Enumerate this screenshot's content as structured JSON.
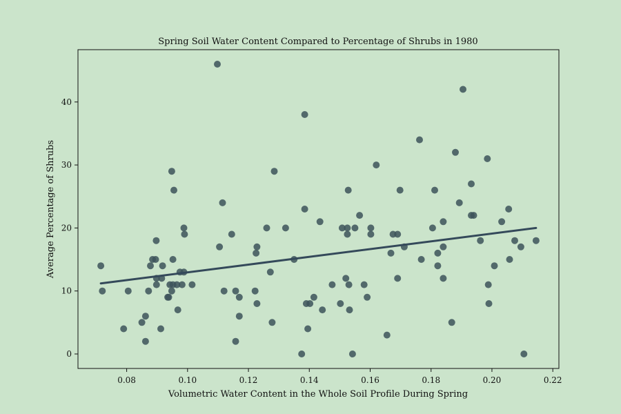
{
  "chart_data": {
    "type": "scatter",
    "title": "Spring Soil Water Content Compared to Percentage of Shrubs in 1980",
    "xlabel": "Volumetric Water Content in the Whole Soil Profile During Spring",
    "ylabel": "Average Percentage of Shrubs",
    "xlim": [
      0.064,
      0.222
    ],
    "ylim": [
      -2.3,
      48.3
    ],
    "xticks": [
      0.08,
      0.1,
      0.12,
      0.14,
      0.16,
      0.18,
      0.2,
      0.22
    ],
    "xtick_labels": [
      "0.08",
      "0.10",
      "0.12",
      "0.14",
      "0.16",
      "0.18",
      "0.20",
      "0.22"
    ],
    "yticks": [
      0,
      10,
      20,
      30,
      40
    ],
    "ytick_labels": [
      "0",
      "10",
      "20",
      "30",
      "40"
    ],
    "grid": false,
    "colors": {
      "background": "#cbe4cb",
      "points": "#3d535b",
      "trend_line": "#34495a"
    },
    "points": [
      [
        0.0715,
        14
      ],
      [
        0.072,
        10
      ],
      [
        0.079,
        4
      ],
      [
        0.0805,
        10
      ],
      [
        0.085,
        5
      ],
      [
        0.0862,
        6
      ],
      [
        0.0862,
        2
      ],
      [
        0.0872,
        10
      ],
      [
        0.0878,
        14
      ],
      [
        0.0885,
        15
      ],
      [
        0.0895,
        15
      ],
      [
        0.0897,
        18
      ],
      [
        0.0898,
        12
      ],
      [
        0.0898,
        11
      ],
      [
        0.0912,
        4
      ],
      [
        0.0915,
        12
      ],
      [
        0.0918,
        14
      ],
      [
        0.0935,
        9
      ],
      [
        0.0938,
        9
      ],
      [
        0.0942,
        11
      ],
      [
        0.0948,
        29
      ],
      [
        0.0948,
        10
      ],
      [
        0.0952,
        15
      ],
      [
        0.0952,
        11
      ],
      [
        0.0955,
        26
      ],
      [
        0.0965,
        11
      ],
      [
        0.0968,
        7
      ],
      [
        0.0975,
        13
      ],
      [
        0.0982,
        11
      ],
      [
        0.0988,
        20
      ],
      [
        0.0988,
        13
      ],
      [
        0.099,
        19
      ],
      [
        0.1015,
        11
      ],
      [
        0.1098,
        46
      ],
      [
        0.1105,
        17
      ],
      [
        0.1115,
        24
      ],
      [
        0.112,
        10
      ],
      [
        0.1145,
        19
      ],
      [
        0.1158,
        10
      ],
      [
        0.1158,
        2
      ],
      [
        0.117,
        9
      ],
      [
        0.117,
        6
      ],
      [
        0.1222,
        10
      ],
      [
        0.1225,
        16
      ],
      [
        0.1228,
        17
      ],
      [
        0.1228,
        8
      ],
      [
        0.126,
        20
      ],
      [
        0.1272,
        13
      ],
      [
        0.1278,
        5
      ],
      [
        0.1285,
        29
      ],
      [
        0.1322,
        20
      ],
      [
        0.135,
        15
      ],
      [
        0.1375,
        0
      ],
      [
        0.1385,
        38
      ],
      [
        0.1385,
        23
      ],
      [
        0.139,
        8
      ],
      [
        0.1395,
        4
      ],
      [
        0.1402,
        8
      ],
      [
        0.1415,
        9
      ],
      [
        0.1435,
        21
      ],
      [
        0.1443,
        7
      ],
      [
        0.1475,
        11
      ],
      [
        0.1502,
        8
      ],
      [
        0.1508,
        20
      ],
      [
        0.152,
        12
      ],
      [
        0.1525,
        20
      ],
      [
        0.1525,
        19
      ],
      [
        0.1528,
        26
      ],
      [
        0.153,
        11
      ],
      [
        0.1532,
        7
      ],
      [
        0.1542,
        0
      ],
      [
        0.155,
        20
      ],
      [
        0.1565,
        22
      ],
      [
        0.158,
        11
      ],
      [
        0.159,
        9
      ],
      [
        0.1602,
        20
      ],
      [
        0.1602,
        19
      ],
      [
        0.162,
        30
      ],
      [
        0.1655,
        3
      ],
      [
        0.1668,
        16
      ],
      [
        0.1675,
        19
      ],
      [
        0.169,
        19
      ],
      [
        0.169,
        12
      ],
      [
        0.1698,
        26
      ],
      [
        0.1712,
        17
      ],
      [
        0.1762,
        34
      ],
      [
        0.1768,
        15
      ],
      [
        0.1805,
        20
      ],
      [
        0.1812,
        26
      ],
      [
        0.1822,
        16
      ],
      [
        0.1822,
        14
      ],
      [
        0.184,
        21
      ],
      [
        0.184,
        17
      ],
      [
        0.184,
        12
      ],
      [
        0.1868,
        5
      ],
      [
        0.188,
        32
      ],
      [
        0.1893,
        24
      ],
      [
        0.1905,
        42
      ],
      [
        0.1932,
        27
      ],
      [
        0.1932,
        22
      ],
      [
        0.194,
        22
      ],
      [
        0.1962,
        18
      ],
      [
        0.1985,
        31
      ],
      [
        0.1988,
        11
      ],
      [
        0.199,
        8
      ],
      [
        0.2008,
        14
      ],
      [
        0.2032,
        21
      ],
      [
        0.2055,
        23
      ],
      [
        0.2058,
        15
      ],
      [
        0.2075,
        18
      ],
      [
        0.2095,
        17
      ],
      [
        0.2105,
        0
      ],
      [
        0.2145,
        18
      ]
    ],
    "trend_line": {
      "x": [
        0.0715,
        0.2145
      ],
      "y": [
        11.2,
        20.0
      ]
    }
  }
}
